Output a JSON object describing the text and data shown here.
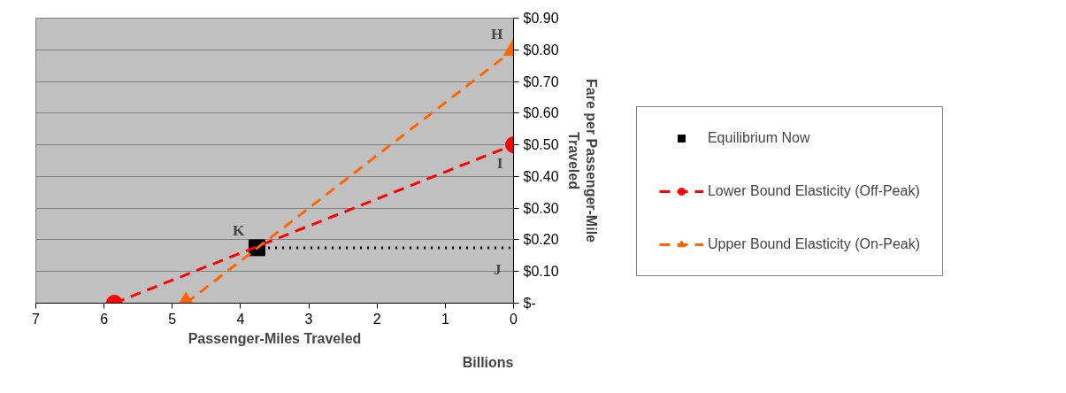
{
  "chart_data": {
    "type": "line",
    "xlabel": "Passenger-Miles Traveled",
    "ylabel": "Fare per Passenger-Mile\nTraveled",
    "xlim": [
      7,
      0
    ],
    "xticks": [
      7,
      6,
      5,
      4,
      3,
      2,
      1,
      0
    ],
    "ylim": [
      0,
      0.9
    ],
    "yticks": [
      {
        "value": 0,
        "label": "$-"
      },
      {
        "value": 0.1,
        "label": "$0.10"
      },
      {
        "value": 0.2,
        "label": "$0.20"
      },
      {
        "value": 0.3,
        "label": "$0.30"
      },
      {
        "value": 0.4,
        "label": "$0.40"
      },
      {
        "value": 0.5,
        "label": "$0.50"
      },
      {
        "value": 0.6,
        "label": "$0.60"
      },
      {
        "value": 0.7,
        "label": "$0.70"
      },
      {
        "value": 0.8,
        "label": "$0.80"
      },
      {
        "value": 0.9,
        "label": "$0.90"
      }
    ],
    "grid": "y",
    "legend": "right",
    "annotations": [
      "Billions",
      {
        "text": "H",
        "x": 0,
        "y": 0.8
      },
      {
        "text": "I",
        "x": 0,
        "y": 0.5
      },
      {
        "text": "J",
        "x": 0.05,
        "y": 0.175
      },
      {
        "text": "K",
        "x": 3.76,
        "y": 0.175
      }
    ],
    "series": [
      {
        "name": "Equilibrium Now",
        "type": "scatter",
        "marker": "square",
        "color": "#000000",
        "x": [
          3.76
        ],
        "values": [
          0.175
        ]
      },
      {
        "name": "Lower Bound Elasticity (Off-Peak)",
        "line_style": "dashed",
        "marker": "circle",
        "color": "#ff0000",
        "x": [
          5.85,
          0
        ],
        "values": [
          0,
          0.5
        ]
      },
      {
        "name": "Upper Bound Elasticity (On-Peak)",
        "line_style": "dashed",
        "marker": "triangle",
        "color": "#ff6600",
        "x": [
          4.8,
          0
        ],
        "values": [
          0,
          0.8
        ]
      },
      {
        "line_style": "dotted",
        "marker": "none",
        "color": "#000000",
        "x": [
          3.7,
          0.05
        ],
        "values": [
          0.175,
          0.175
        ]
      }
    ]
  }
}
